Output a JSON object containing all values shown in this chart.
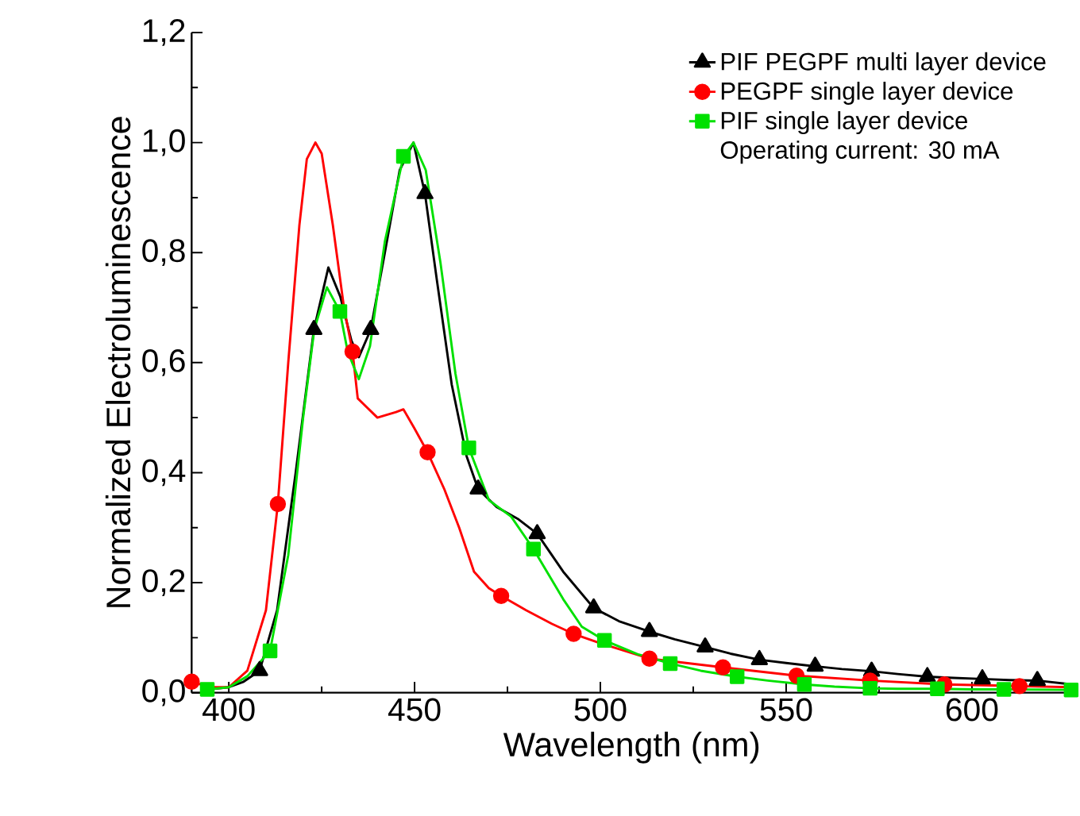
{
  "chart_data": {
    "type": "line",
    "xlabel": "Wavelength (nm)",
    "ylabel": "Normalized Electroluminescence",
    "xlim": [
      390,
      627
    ],
    "ylim": [
      0,
      1.2
    ],
    "xticks": [
      400,
      450,
      500,
      550,
      600
    ],
    "yticks": [
      {
        "value": 0,
        "label": "0,0"
      },
      {
        "value": 0.2,
        "label": "0,2"
      },
      {
        "value": 0.4,
        "label": "0,4"
      },
      {
        "value": 0.6,
        "label": "0,6"
      },
      {
        "value": 0.8,
        "label": "0,8"
      },
      {
        "value": 1.0,
        "label": "1,0"
      },
      {
        "value": 1.2,
        "label": "1,2"
      }
    ],
    "legend": "top right",
    "annotations": [
      "Operating current: 30 mA"
    ],
    "series": [
      {
        "name": "PIF PEGPF multi layer device",
        "color": "#000000",
        "x": [
          393,
          400,
          404,
          408.3,
          413,
          418,
          422.9,
          426.8,
          430,
          433,
          435,
          438.2,
          442,
          446,
          449.7,
          452.8,
          456,
          460,
          464,
          467.1,
          472.2,
          478,
          483,
          490,
          498.2,
          505,
          513.2,
          520,
          528.2,
          535,
          542.8,
          550,
          557.8,
          565,
          573,
          580,
          588,
          595,
          602.8,
          610,
          617.6,
          627
        ],
        "values": [
          0.005,
          0.01,
          0.02,
          0.04,
          0.15,
          0.4,
          0.66,
          0.773,
          0.72,
          0.64,
          0.61,
          0.66,
          0.8,
          0.95,
          1.0,
          0.907,
          0.75,
          0.56,
          0.43,
          0.37,
          0.337,
          0.315,
          0.289,
          0.22,
          0.154,
          0.13,
          0.111,
          0.097,
          0.083,
          0.071,
          0.06,
          0.054,
          0.048,
          0.043,
          0.039,
          0.034,
          0.029,
          0.027,
          0.025,
          0.023,
          0.022,
          0.015
        ]
      },
      {
        "type": "scatter",
        "color": "#000000",
        "marker": "triangle",
        "x": [
          408.3,
          422.9,
          438.2,
          452.8,
          467.1,
          483,
          498.2,
          513.2,
          528.2,
          542.8,
          557.8,
          573,
          588,
          602.8,
          617.6
        ],
        "values": [
          0.04,
          0.66,
          0.66,
          0.907,
          0.37,
          0.289,
          0.154,
          0.111,
          0.083,
          0.06,
          0.048,
          0.039,
          0.029,
          0.025,
          0.022
        ]
      },
      {
        "name": "PEGPF single layer device",
        "color": "#ff0000",
        "type": "line",
        "x": [
          390,
          395,
          400,
          405,
          410,
          413.2,
          416,
          419,
          421,
          423.3,
          425,
          428,
          431,
          433.3,
          434.7,
          440,
          445,
          447,
          450,
          453.5,
          458,
          462,
          466,
          470,
          473.3,
          480,
          487,
          492.8,
          500,
          513.2,
          533,
          552.8,
          572.6,
          592.6,
          612.8,
          627
        ],
        "values": [
          0.02,
          0.01,
          0.01,
          0.04,
          0.15,
          0.343,
          0.6,
          0.85,
          0.97,
          1.0,
          0.98,
          0.85,
          0.7,
          0.62,
          0.535,
          0.5,
          0.51,
          0.515,
          0.48,
          0.437,
          0.37,
          0.3,
          0.22,
          0.19,
          0.176,
          0.15,
          0.125,
          0.107,
          0.09,
          0.062,
          0.046,
          0.031,
          0.022,
          0.015,
          0.012,
          0.01
        ]
      },
      {
        "type": "scatter",
        "color": "#ff0000",
        "marker": "circle",
        "x": [
          390,
          413.2,
          433.3,
          453.5,
          473.3,
          492.8,
          513.2,
          533,
          552.8,
          572.6,
          592.6,
          612.8
        ],
        "values": [
          0.02,
          0.343,
          0.62,
          0.437,
          0.176,
          0.107,
          0.062,
          0.046,
          0.031,
          0.022,
          0.015,
          0.012
        ]
      },
      {
        "name": "PIF single layer device",
        "color": "#00e000",
        "type": "line",
        "x": [
          394.2,
          400,
          405,
          411.1,
          416,
          420,
          423,
          426.4,
          429.9,
          432,
          435,
          438,
          442,
          447,
          449.7,
          453,
          457,
          461,
          464.6,
          470,
          476,
          482,
          490,
          495,
          501.1,
          510,
          518.8,
          527,
          536.8,
          545,
          554.9,
          563,
          572.6,
          580,
          590.7,
          600,
          608.6,
          626.7
        ],
        "values": [
          0.006,
          0.01,
          0.03,
          0.076,
          0.25,
          0.5,
          0.66,
          0.737,
          0.693,
          0.62,
          0.57,
          0.63,
          0.82,
          0.975,
          1.0,
          0.95,
          0.78,
          0.58,
          0.445,
          0.35,
          0.32,
          0.261,
          0.17,
          0.12,
          0.095,
          0.07,
          0.053,
          0.04,
          0.029,
          0.022,
          0.015,
          0.011,
          0.008,
          0.007,
          0.007,
          0.006,
          0.006,
          0.005
        ]
      },
      {
        "type": "scatter",
        "color": "#00e000",
        "marker": "square",
        "x": [
          394.2,
          411.1,
          429.9,
          447,
          464.6,
          482,
          501.1,
          518.8,
          536.8,
          554.9,
          572.6,
          590.7,
          608.6,
          626.7
        ],
        "values": [
          0.006,
          0.076,
          0.693,
          0.975,
          0.445,
          0.261,
          0.095,
          0.053,
          0.029,
          0.015,
          0.008,
          0.007,
          0.006,
          0.005
        ]
      }
    ]
  }
}
